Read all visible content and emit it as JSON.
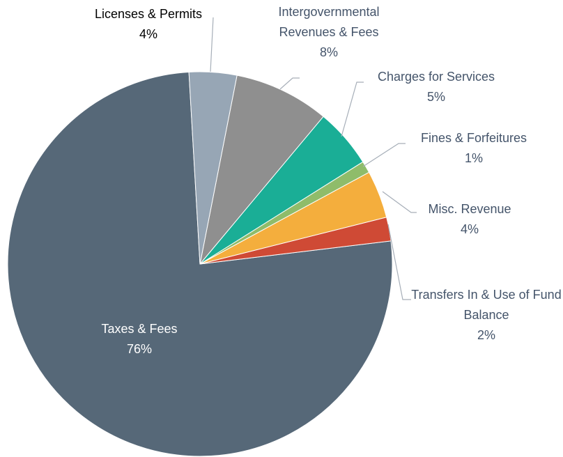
{
  "chart_data": {
    "type": "pie",
    "categories": [
      "Licenses & Permits",
      "Intergovernmental Revenues & Fees",
      "Charges for Services",
      "Fines & Forfeitures",
      "Misc. Revenue",
      "Transfers In & Use of Fund Balance",
      "Taxes & Fees"
    ],
    "values": [
      4,
      8,
      5,
      1,
      4,
      2,
      76
    ],
    "value_labels": [
      "4%",
      "8%",
      "5%",
      "1%",
      "4%",
      "2%",
      "76%"
    ],
    "colors": [
      "#97a6b5",
      "#8f8f8f",
      "#1aae96",
      "#8fbc6a",
      "#f4ae3d",
      "#cf4a35",
      "#566878"
    ]
  }
}
